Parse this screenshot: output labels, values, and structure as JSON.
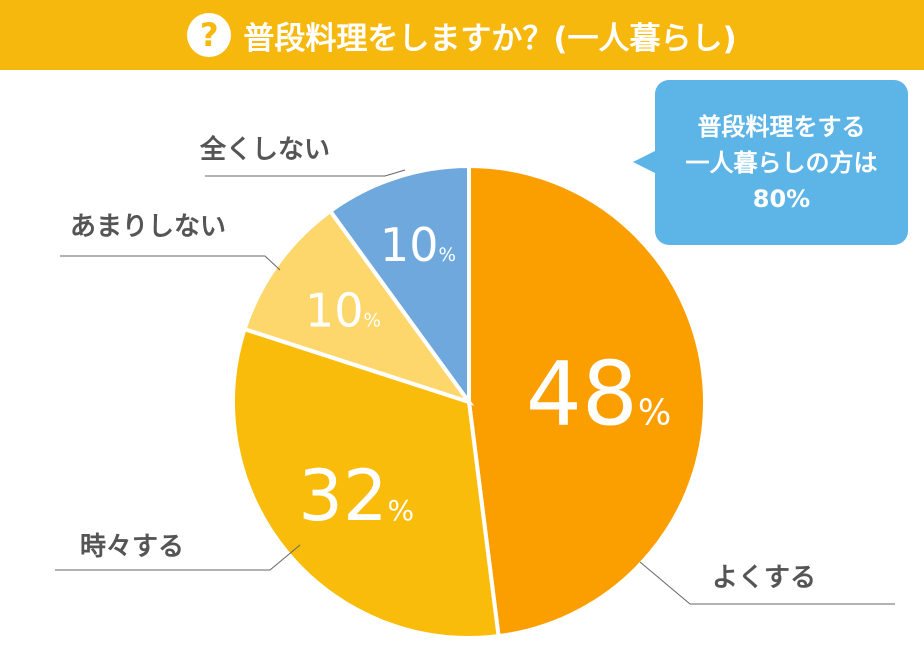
{
  "header": {
    "icon": "question-icon",
    "icon_text": "?",
    "title": "普段料理をしますか？(一人暮らし)"
  },
  "callout": {
    "lines": [
      "普段料理をする",
      "一人暮らしの方は",
      "80%"
    ]
  },
  "chart_data": {
    "type": "pie",
    "title": "普段料理をしますか？(一人暮らし)",
    "unit": "%",
    "categories": [
      "よくする",
      "時々する",
      "あまりしない",
      "全くしない"
    ],
    "values": [
      48,
      32,
      10,
      10
    ],
    "value_labels": [
      "48",
      "32",
      "10",
      "10"
    ],
    "colors": [
      "#FB9F00",
      "#F9BC0A",
      "#FDD76B",
      "#6FA8DC"
    ],
    "start": "12 o'clock",
    "direction": "clockwise"
  }
}
